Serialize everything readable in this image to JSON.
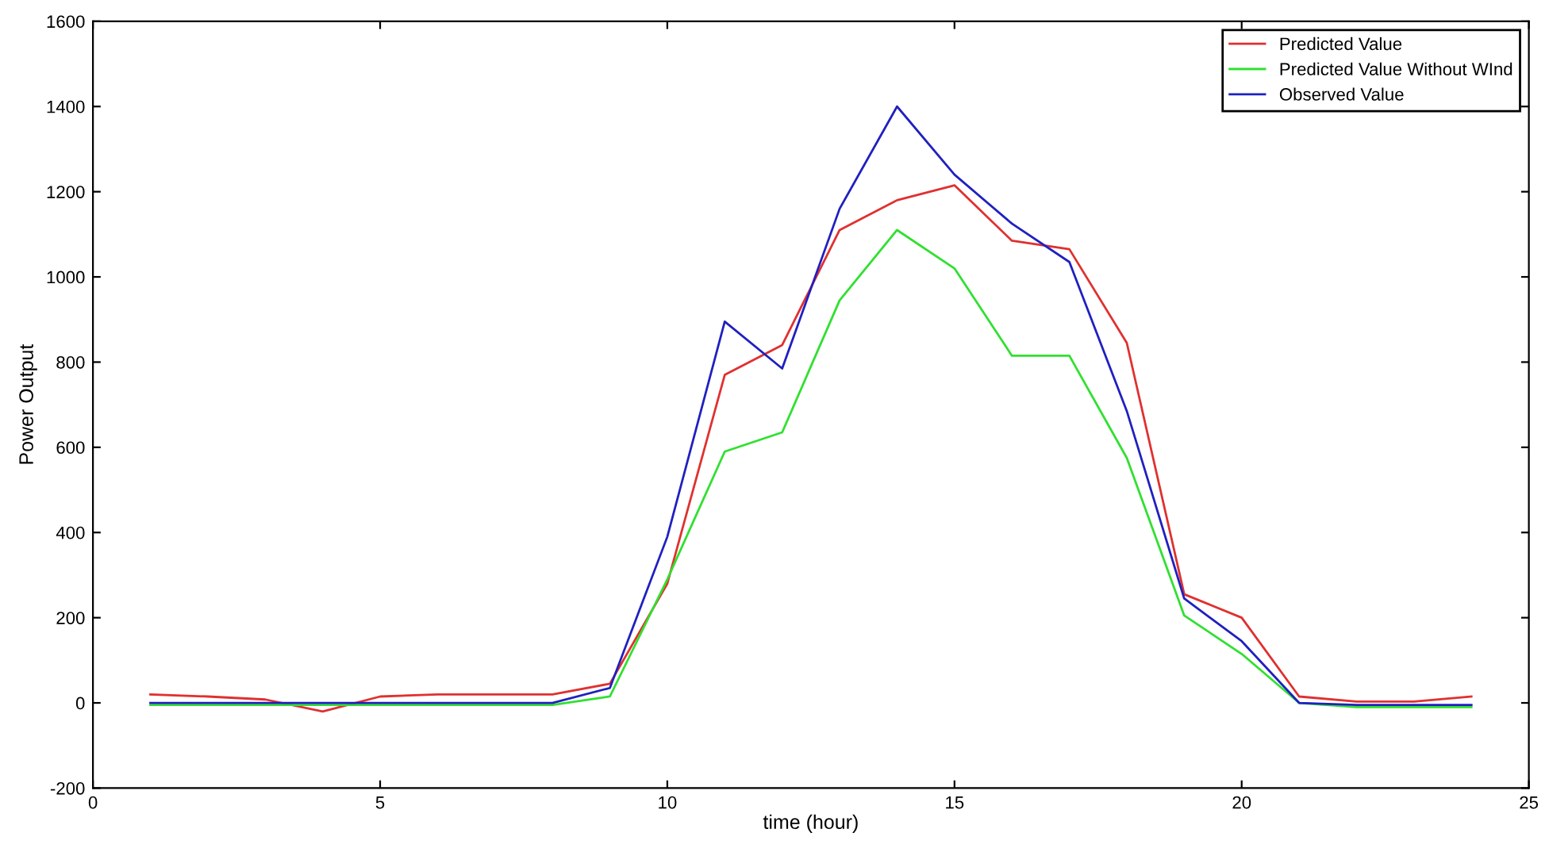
{
  "chart_data": {
    "type": "line",
    "xlabel": "time (hour)",
    "ylabel": "Power Output",
    "x": [
      1,
      2,
      3,
      4,
      5,
      6,
      7,
      8,
      9,
      10,
      11,
      12,
      13,
      14,
      15,
      16,
      17,
      18,
      19,
      20,
      21,
      22,
      23,
      24
    ],
    "series": [
      {
        "name": "Predicted Value",
        "color": "#e03030",
        "values": [
          20,
          15,
          8,
          -20,
          15,
          20,
          20,
          20,
          45,
          280,
          770,
          840,
          1110,
          1180,
          1215,
          1085,
          1065,
          845,
          255,
          200,
          15,
          3,
          3,
          15
        ]
      },
      {
        "name": "Predicted Value Without WInd",
        "color": "#30e030",
        "values": [
          -5,
          -5,
          -5,
          -5,
          -5,
          -5,
          -5,
          -5,
          15,
          290,
          590,
          635,
          945,
          1110,
          1020,
          815,
          815,
          575,
          205,
          115,
          0,
          -10,
          -10,
          -10
        ]
      },
      {
        "name": "Observed Value",
        "color": "#2020c0",
        "values": [
          0,
          0,
          0,
          0,
          0,
          0,
          0,
          0,
          35,
          390,
          895,
          785,
          1160,
          1400,
          1240,
          1125,
          1035,
          685,
          245,
          145,
          0,
          -5,
          -5,
          -5
        ]
      }
    ],
    "xlim": [
      0,
      25
    ],
    "ylim": [
      -200,
      1600
    ],
    "xticks": [
      0,
      5,
      10,
      15,
      20,
      25
    ],
    "yticks": [
      -200,
      0,
      200,
      400,
      600,
      800,
      1000,
      1200,
      1400,
      1600
    ],
    "legend": "top right",
    "grid": false
  }
}
